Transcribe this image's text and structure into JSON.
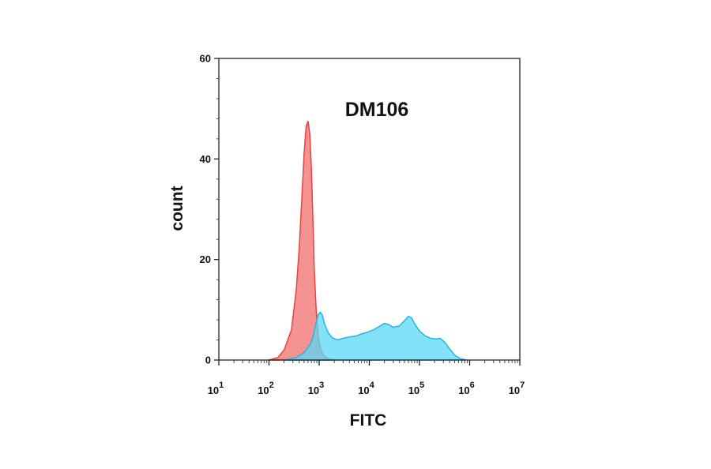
{
  "chart_data": {
    "type": "area",
    "title": "DM106",
    "xlabel": "FITC",
    "ylabel": "count",
    "x_scale": "log",
    "xlim": [
      10,
      10000000
    ],
    "ylim": [
      0,
      60
    ],
    "y_ticks": [
      0,
      20,
      40,
      60
    ],
    "x_ticks": [
      {
        "value": 10,
        "base": "10",
        "exp": "1"
      },
      {
        "value": 100,
        "base": "10",
        "exp": "2"
      },
      {
        "value": 1000,
        "base": "10",
        "exp": "3"
      },
      {
        "value": 10000,
        "base": "10",
        "exp": "4"
      },
      {
        "value": 100000,
        "base": "10",
        "exp": "5"
      },
      {
        "value": 1000000,
        "base": "10",
        "exp": "6"
      },
      {
        "value": 10000000,
        "base": "10",
        "exp": "7"
      }
    ],
    "grid": false,
    "legend": "none",
    "series": [
      {
        "color": "#f26d6d",
        "stroke": "#e8433f",
        "points": [
          [
            100,
            0
          ],
          [
            150,
            0.5
          ],
          [
            200,
            2
          ],
          [
            280,
            6
          ],
          [
            350,
            14
          ],
          [
            400,
            22
          ],
          [
            450,
            32
          ],
          [
            500,
            41
          ],
          [
            550,
            46.5
          ],
          [
            600,
            47.5
          ],
          [
            650,
            45
          ],
          [
            700,
            38
          ],
          [
            750,
            28
          ],
          [
            800,
            18
          ],
          [
            870,
            10
          ],
          [
            950,
            5
          ],
          [
            1050,
            2.5
          ],
          [
            1200,
            1
          ],
          [
            1500,
            0.3
          ],
          [
            2000,
            0
          ]
        ]
      },
      {
        "color": "#5ad7f5",
        "stroke": "#1eb8e6",
        "points": [
          [
            200,
            0
          ],
          [
            350,
            0.5
          ],
          [
            500,
            1.5
          ],
          [
            650,
            3
          ],
          [
            750,
            4.5
          ],
          [
            850,
            7
          ],
          [
            950,
            9
          ],
          [
            1050,
            9.5
          ],
          [
            1150,
            9
          ],
          [
            1300,
            7
          ],
          [
            1500,
            5.5
          ],
          [
            1800,
            4.5
          ],
          [
            2300,
            4
          ],
          [
            3000,
            4.3
          ],
          [
            4000,
            4.6
          ],
          [
            5500,
            4.8
          ],
          [
            7000,
            5.2
          ],
          [
            9000,
            5.5
          ],
          [
            12000,
            6
          ],
          [
            16000,
            6.7
          ],
          [
            20000,
            7.3
          ],
          [
            25000,
            7
          ],
          [
            30000,
            6.5
          ],
          [
            40000,
            6.8
          ],
          [
            50000,
            7.8
          ],
          [
            60000,
            8.7
          ],
          [
            70000,
            8.4
          ],
          [
            80000,
            7.2
          ],
          [
            100000,
            5.8
          ],
          [
            130000,
            4.8
          ],
          [
            170000,
            4.3
          ],
          [
            220000,
            4.2
          ],
          [
            260000,
            4.3
          ],
          [
            320000,
            3.5
          ],
          [
            400000,
            2.2
          ],
          [
            500000,
            1
          ],
          [
            650000,
            0.3
          ],
          [
            850000,
            0
          ]
        ]
      }
    ]
  }
}
